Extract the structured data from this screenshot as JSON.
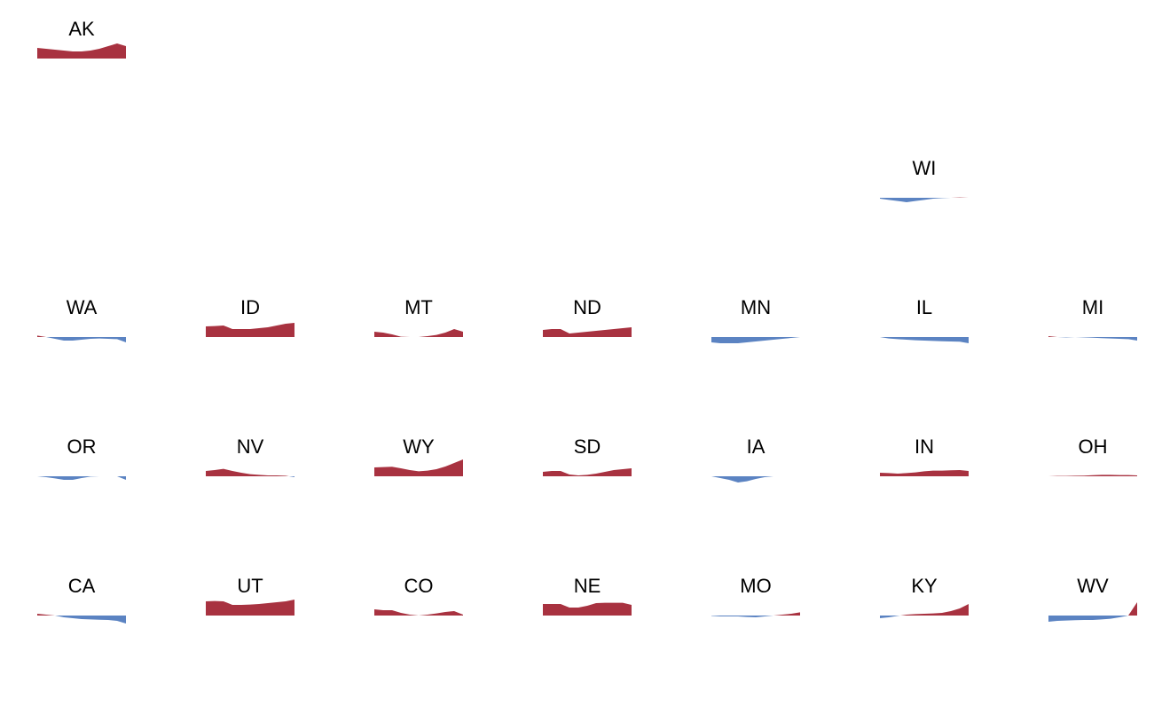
{
  "colors": {
    "positive": "#a83240",
    "negative": "#5b83c2"
  },
  "chart_data": {
    "type": "area",
    "description_scale": "y values are relative margins; positive = red fill above baseline, negative = blue fill below baseline",
    "x": [
      0,
      1,
      2,
      3,
      4,
      5,
      6,
      7,
      8,
      9,
      10
    ],
    "ylim": [
      -1,
      1
    ],
    "states": [
      {
        "abbr": "AK",
        "row": 0,
        "col": 0,
        "values": [
          0.6,
          0.55,
          0.5,
          0.45,
          0.4,
          0.4,
          0.45,
          0.55,
          0.7,
          0.85,
          0.7
        ]
      },
      {
        "abbr": "WI",
        "row": 1,
        "col": 5,
        "values": [
          -0.05,
          -0.12,
          -0.18,
          -0.25,
          -0.18,
          -0.12,
          -0.05,
          -0.02,
          0.0,
          0.02,
          0.0
        ]
      },
      {
        "abbr": "WA",
        "row": 2,
        "col": 0,
        "values": [
          0.08,
          0.0,
          -0.1,
          -0.2,
          -0.2,
          -0.15,
          -0.1,
          -0.08,
          -0.1,
          -0.12,
          -0.3
        ]
      },
      {
        "abbr": "ID",
        "row": 2,
        "col": 1,
        "values": [
          0.6,
          0.62,
          0.65,
          0.45,
          0.45,
          0.45,
          0.5,
          0.55,
          0.65,
          0.75,
          0.8
        ]
      },
      {
        "abbr": "MT",
        "row": 2,
        "col": 2,
        "values": [
          0.3,
          0.25,
          0.15,
          0.02,
          0.0,
          0.0,
          0.05,
          0.12,
          0.25,
          0.45,
          0.3
        ]
      },
      {
        "abbr": "ND",
        "row": 2,
        "col": 3,
        "values": [
          0.4,
          0.45,
          0.45,
          0.2,
          0.25,
          0.3,
          0.35,
          0.4,
          0.45,
          0.5,
          0.55
        ]
      },
      {
        "abbr": "MN",
        "row": 2,
        "col": 4,
        "values": [
          -0.3,
          -0.35,
          -0.35,
          -0.35,
          -0.3,
          -0.25,
          -0.2,
          -0.15,
          -0.1,
          -0.05,
          0.0
        ]
      },
      {
        "abbr": "IL",
        "row": 2,
        "col": 5,
        "values": [
          0.0,
          -0.08,
          -0.12,
          -0.15,
          -0.18,
          -0.2,
          -0.22,
          -0.24,
          -0.25,
          -0.26,
          -0.35
        ]
      },
      {
        "abbr": "MI",
        "row": 2,
        "col": 6,
        "values": [
          0.05,
          0.0,
          -0.02,
          0.0,
          -0.02,
          -0.04,
          -0.06,
          -0.08,
          -0.1,
          -0.12,
          -0.2
        ]
      },
      {
        "abbr": "OR",
        "row": 3,
        "col": 0,
        "values": [
          0.0,
          -0.05,
          -0.12,
          -0.2,
          -0.2,
          -0.1,
          -0.02,
          0.0,
          0.0,
          0.0,
          -0.2
        ]
      },
      {
        "abbr": "NV",
        "row": 3,
        "col": 1,
        "values": [
          0.3,
          0.35,
          0.42,
          0.3,
          0.2,
          0.12,
          0.08,
          0.05,
          0.05,
          0.03,
          -0.05
        ]
      },
      {
        "abbr": "WY",
        "row": 3,
        "col": 2,
        "values": [
          0.5,
          0.52,
          0.54,
          0.45,
          0.35,
          0.28,
          0.32,
          0.4,
          0.55,
          0.75,
          0.95
        ]
      },
      {
        "abbr": "SD",
        "row": 3,
        "col": 3,
        "values": [
          0.25,
          0.3,
          0.3,
          0.1,
          0.05,
          0.08,
          0.15,
          0.25,
          0.35,
          0.4,
          0.45
        ]
      },
      {
        "abbr": "IA",
        "row": 3,
        "col": 4,
        "values": [
          0.0,
          -0.1,
          -0.2,
          -0.35,
          -0.28,
          -0.15,
          -0.05,
          0.0,
          0.0,
          0.0,
          0.0
        ]
      },
      {
        "abbr": "IN",
        "row": 3,
        "col": 5,
        "values": [
          0.2,
          0.18,
          0.15,
          0.18,
          0.22,
          0.28,
          0.32,
          0.32,
          0.34,
          0.35,
          0.3
        ]
      },
      {
        "abbr": "OH",
        "row": 3,
        "col": 6,
        "values": [
          0.0,
          0.02,
          0.02,
          0.03,
          0.04,
          0.06,
          0.08,
          0.08,
          0.07,
          0.07,
          0.05
        ]
      },
      {
        "abbr": "CA",
        "row": 4,
        "col": 0,
        "values": [
          0.1,
          0.05,
          0.0,
          -0.1,
          -0.15,
          -0.2,
          -0.22,
          -0.24,
          -0.25,
          -0.3,
          -0.45
        ]
      },
      {
        "abbr": "UT",
        "row": 4,
        "col": 1,
        "values": [
          0.8,
          0.82,
          0.8,
          0.6,
          0.6,
          0.62,
          0.65,
          0.7,
          0.75,
          0.8,
          0.9
        ]
      },
      {
        "abbr": "CO",
        "row": 4,
        "col": 2,
        "values": [
          0.35,
          0.3,
          0.3,
          0.15,
          0.05,
          0.0,
          0.05,
          0.12,
          0.2,
          0.25,
          0.05
        ]
      },
      {
        "abbr": "NE",
        "row": 4,
        "col": 3,
        "values": [
          0.65,
          0.65,
          0.65,
          0.45,
          0.45,
          0.55,
          0.7,
          0.72,
          0.72,
          0.72,
          0.6
        ]
      },
      {
        "abbr": "MO",
        "row": 4,
        "col": 4,
        "values": [
          -0.02,
          -0.05,
          -0.05,
          -0.05,
          -0.08,
          -0.1,
          -0.05,
          0.0,
          0.05,
          0.1,
          0.18
        ]
      },
      {
        "abbr": "KY",
        "row": 4,
        "col": 5,
        "values": [
          -0.15,
          -0.1,
          -0.02,
          0.05,
          0.08,
          0.1,
          0.12,
          0.15,
          0.25,
          0.4,
          0.65
        ]
      },
      {
        "abbr": "WV",
        "row": 4,
        "col": 6,
        "values": [
          -0.35,
          -0.3,
          -0.28,
          -0.26,
          -0.25,
          -0.25,
          -0.22,
          -0.18,
          -0.1,
          0.0,
          0.75
        ]
      }
    ]
  }
}
